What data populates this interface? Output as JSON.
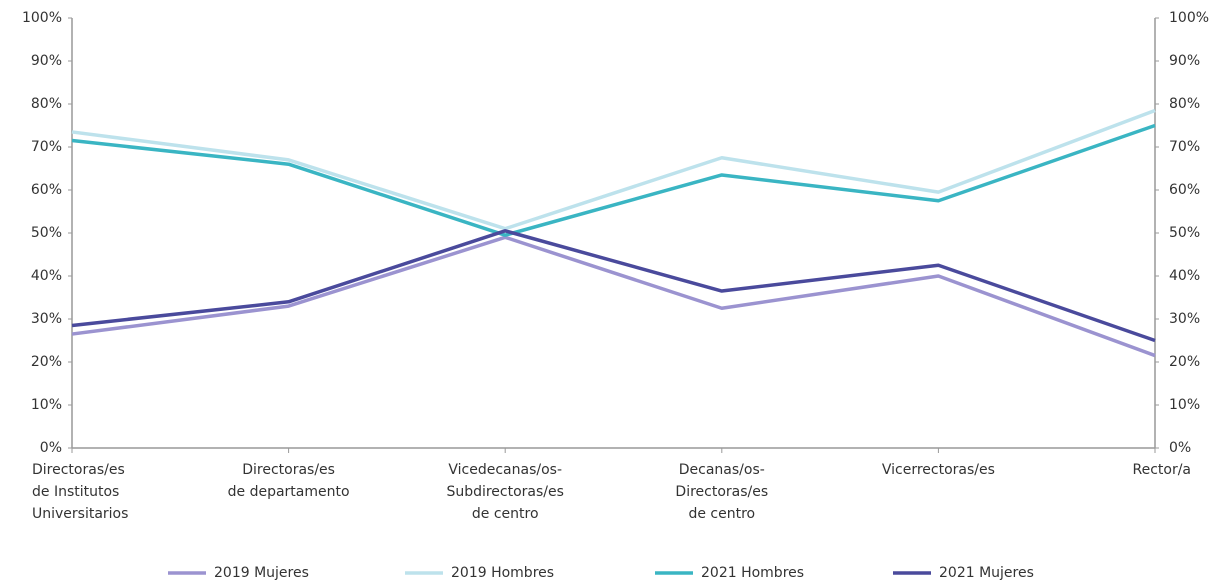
{
  "chart_data": {
    "type": "line",
    "categories": [
      "Directoras/es\nde Institutos\nUniversitarios",
      "Directoras/es\nde departamento",
      "Vicedecanas/os-\nSubdirectoras/es\nde centro",
      "Decanas/os-\nDirectoras/es\nde centro",
      "Vicerrectoras/es",
      "Rector/a"
    ],
    "series": [
      {
        "name": "2019 Mujeres",
        "color": "#9b93d0",
        "values": [
          26.5,
          33,
          49,
          32.5,
          40,
          21.5
        ]
      },
      {
        "name": "2019 Hombres",
        "color": "#bde2ec",
        "values": [
          73.5,
          67,
          51,
          67.5,
          59.5,
          78.5
        ]
      },
      {
        "name": "2021 Hombres",
        "color": "#3ab5c3",
        "values": [
          71.5,
          66,
          49.5,
          63.5,
          57.5,
          75
        ]
      },
      {
        "name": "2021 Mujeres",
        "color": "#4a4a9c",
        "values": [
          28.5,
          34,
          50.5,
          36.5,
          42.5,
          25
        ]
      }
    ],
    "ylim": [
      0,
      100
    ],
    "yticks": [
      {
        "value": 0,
        "label": "0%"
      },
      {
        "value": 10,
        "label": "10%"
      },
      {
        "value": 20,
        "label": "20%"
      },
      {
        "value": 30,
        "label": "30%"
      },
      {
        "value": 40,
        "label": "40%"
      },
      {
        "value": 50,
        "label": "50%"
      },
      {
        "value": 60,
        "label": "60%"
      },
      {
        "value": 70,
        "label": "70%"
      },
      {
        "value": 80,
        "label": "80%"
      },
      {
        "value": 90,
        "label": "90%"
      },
      {
        "value": 100,
        "label": "100%"
      }
    ],
    "y2lim": [
      0,
      100
    ],
    "y2ticks": [
      {
        "value": 0,
        "label": "0%"
      },
      {
        "value": 10,
        "label": "10%"
      },
      {
        "value": 20,
        "label": "20%"
      },
      {
        "value": 30,
        "label": "30%"
      },
      {
        "value": 40,
        "label": "40%"
      },
      {
        "value": 50,
        "label": "50%"
      },
      {
        "value": 60,
        "label": "60%"
      },
      {
        "value": 70,
        "label": "70%"
      },
      {
        "value": 80,
        "label": "80%"
      },
      {
        "value": 90,
        "label": "90%"
      },
      {
        "value": 100,
        "label": "100%"
      }
    ],
    "grid": false,
    "legend": "bottom"
  }
}
